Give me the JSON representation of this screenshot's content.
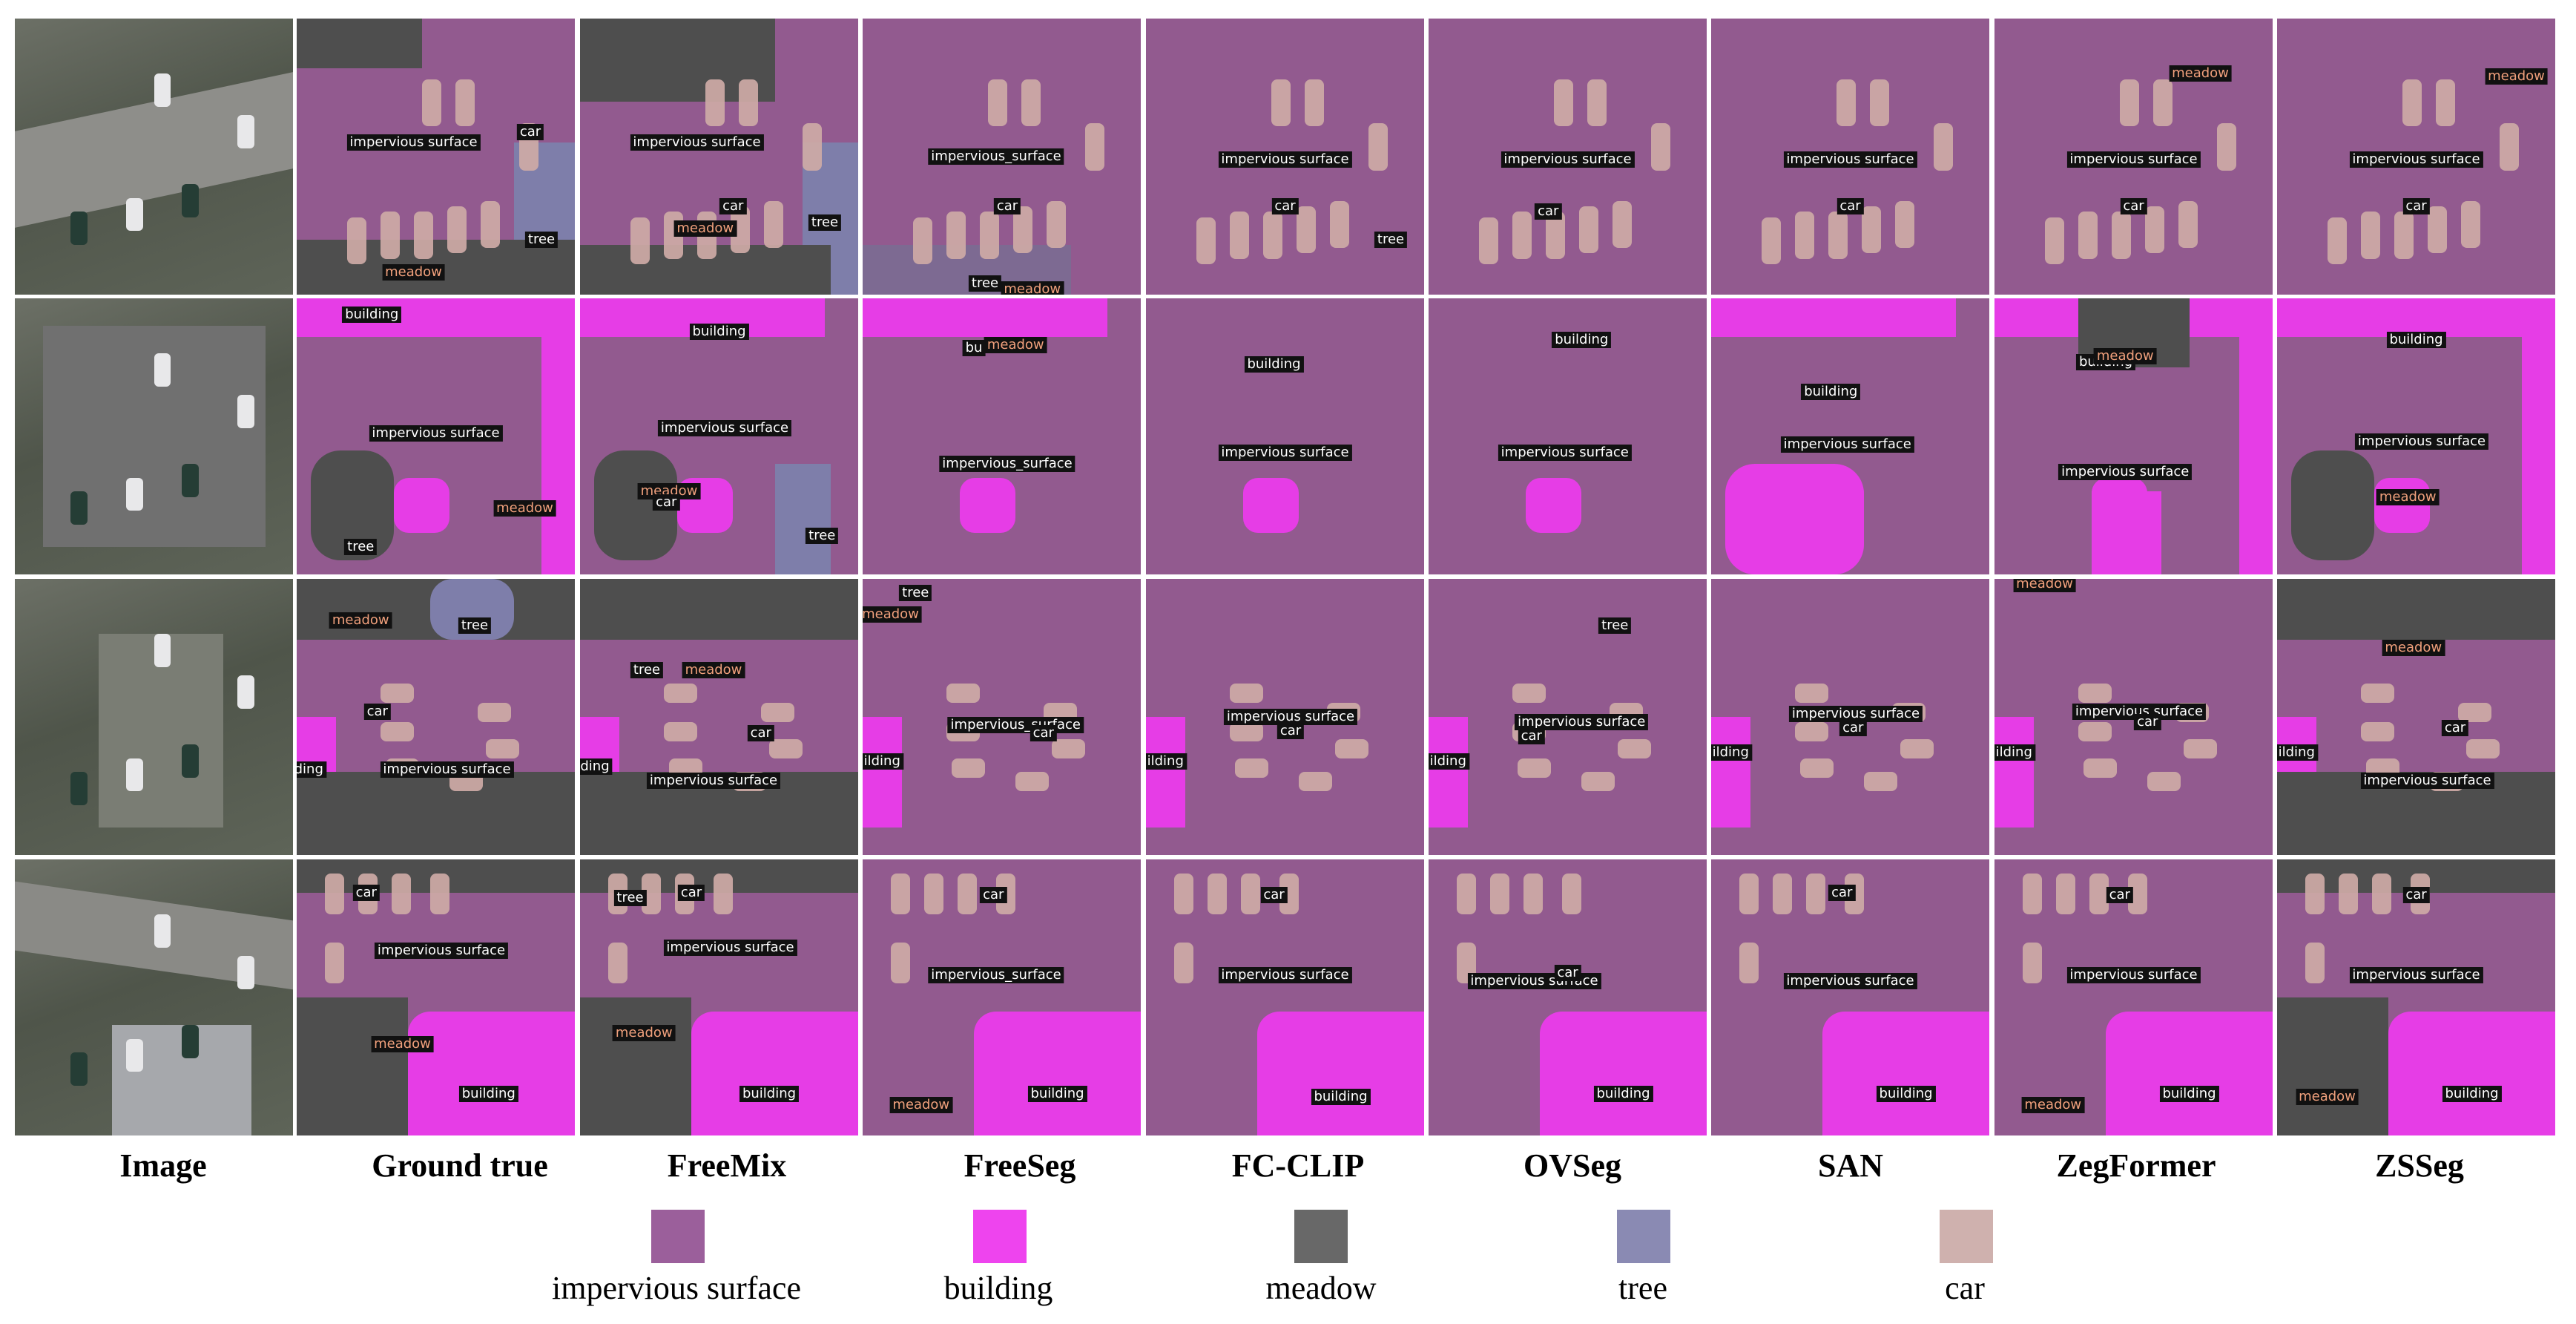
{
  "columns": [
    "Image",
    "Ground true",
    "FreeMix",
    "FreeSeg",
    "FC-CLIP",
    "OVSeg",
    "SAN",
    "ZegFormer",
    "ZSSeg"
  ],
  "legend": [
    {
      "label": "impervious surface",
      "color": "#9b5f9b"
    },
    {
      "label": "building",
      "color": "#ee44ee"
    },
    {
      "label": "meadow",
      "color": "#686868"
    },
    {
      "label": "tree",
      "color": "#8a8ab3"
    },
    {
      "label": "car",
      "color": "#cfb1ae"
    }
  ],
  "rows": [
    {
      "cells": [
        [],
        [
          "impervious surface",
          "car",
          "tree",
          "meadow"
        ],
        [
          "impervious surface",
          "car",
          "meadow",
          "tree"
        ],
        [
          "impervious_surface",
          "car",
          "tree",
          "meadow"
        ],
        [
          "impervious surface",
          "car",
          "tree"
        ],
        [
          "impervious surface",
          "car"
        ],
        [
          "impervious surface",
          "car"
        ],
        [
          "impervious surface",
          "car",
          "meadow"
        ],
        [
          "impervious surface",
          "car",
          "meadow"
        ]
      ]
    },
    {
      "cells": [
        [],
        [
          "building",
          "impervious surface",
          "meadow",
          "tree"
        ],
        [
          "building",
          "impervious surface",
          "meadow",
          "car",
          "tree"
        ],
        [
          "bu",
          "meadow",
          "impervious_surface"
        ],
        [
          "building",
          "impervious surface"
        ],
        [
          "building",
          "impervious surface"
        ],
        [
          "building",
          "impervious surface"
        ],
        [
          "building",
          "meadow",
          "impervious surface"
        ],
        [
          "building",
          "impervious surface",
          "meadow"
        ]
      ]
    },
    {
      "cells": [
        [],
        [
          "meadow",
          "tree",
          "car",
          "impervious surface",
          "ilding"
        ],
        [
          "tree",
          "meadow",
          "car",
          "impervious surface",
          "ilding"
        ],
        [
          "tree",
          "meadow",
          "impervious_surface",
          "car",
          "ilding"
        ],
        [
          "impervious surface",
          "car",
          "ilding"
        ],
        [
          "tree",
          "impervious surface",
          "car",
          "ilding"
        ],
        [
          "impervious surface",
          "car",
          "ilding"
        ],
        [
          "meadow",
          "impervious surface",
          "car",
          "ilding"
        ],
        [
          "meadow",
          "car",
          "impervious surface",
          "ilding"
        ]
      ]
    },
    {
      "cells": [
        [],
        [
          "car",
          "impervious surface",
          "meadow",
          "building"
        ],
        [
          "tree",
          "car",
          "impervious surface",
          "meadow",
          "building"
        ],
        [
          "car",
          "impervious_surface",
          "building",
          "meadow"
        ],
        [
          "car",
          "impervious surface",
          "building"
        ],
        [
          "impervious surface",
          "car",
          "building"
        ],
        [
          "car",
          "impervious surface",
          "building"
        ],
        [
          "car",
          "impervious surface",
          "building",
          "meadow"
        ],
        [
          "car",
          "impervious surface",
          "meadow",
          "building"
        ]
      ]
    }
  ]
}
